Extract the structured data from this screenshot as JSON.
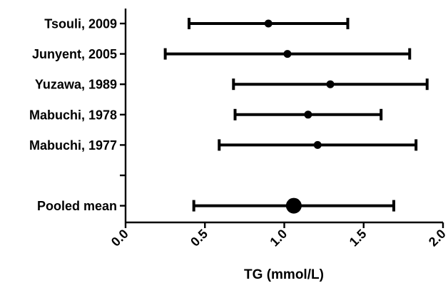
{
  "chart_data": {
    "type": "forest",
    "title": "",
    "xlabel": "TG (mmol/L)",
    "ylabel": "",
    "xlim": [
      0.0,
      2.0
    ],
    "x_ticks": [
      "0.0",
      "0.5",
      "1.0",
      "1.5",
      "2.0"
    ],
    "x_tick_rotation_deg": -45,
    "grid": false,
    "legend": "none",
    "rows": [
      {
        "label": "Tsouli, 2009",
        "mean": 0.9,
        "lower": 0.4,
        "upper": 1.4,
        "pooled": false
      },
      {
        "label": "Junyent, 2005",
        "mean": 1.02,
        "lower": 0.25,
        "upper": 1.79,
        "pooled": false
      },
      {
        "label": "Yuzawa, 1989",
        "mean": 1.29,
        "lower": 0.68,
        "upper": 1.9,
        "pooled": false
      },
      {
        "label": "Mabuchi, 1978",
        "mean": 1.15,
        "lower": 0.69,
        "upper": 1.61,
        "pooled": false
      },
      {
        "label": "Mabuchi, 1977",
        "mean": 1.21,
        "lower": 0.59,
        "upper": 1.83,
        "pooled": false
      },
      {
        "label": "",
        "mean": null,
        "lower": null,
        "upper": null,
        "pooled": false
      },
      {
        "label": "Pooled mean",
        "mean": 1.06,
        "lower": 0.43,
        "upper": 1.69,
        "pooled": true
      }
    ]
  }
}
